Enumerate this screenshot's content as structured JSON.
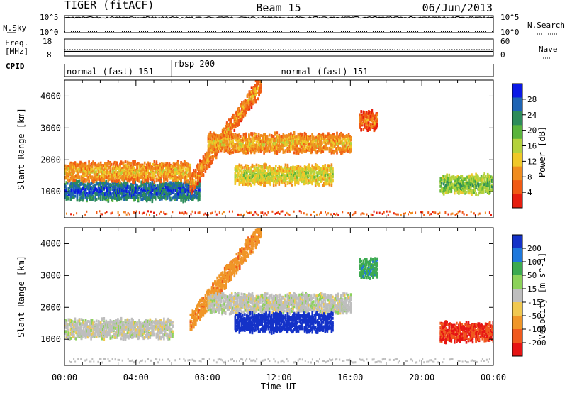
{
  "header": {
    "radar": "TIGER (fitACF)",
    "beam": "Beam 15",
    "date": "06/Jun/2013"
  },
  "status_panel": {
    "nsky_label": "N.Sky",
    "nsearch_label": "N.Search",
    "noise_ticks": [
      "10^5",
      "10^0"
    ],
    "freq_label_1": "Freq.",
    "freq_label_2": "[MHz]",
    "freq_ticks": [
      "18",
      "8"
    ],
    "nave_label": "Nave",
    "nave_ticks": [
      "60",
      "0"
    ],
    "cpid_label": "CPID",
    "cpid_segments": [
      {
        "label": "normal (fast) 151",
        "start_hour": 0,
        "end_hour": 6
      },
      {
        "label": "rbsp 200",
        "start_hour": 6,
        "end_hour": 12
      },
      {
        "label": "normal (fast) 151",
        "start_hour": 12,
        "end_hour": 24
      }
    ]
  },
  "chart_data": [
    {
      "type": "heatmap",
      "name": "power",
      "xlabel": "",
      "ylabel": "Slant Range [km]",
      "xlim": [
        0,
        24
      ],
      "ylim": [
        180,
        4500
      ],
      "yticks": [
        1000,
        2000,
        3000,
        4000
      ],
      "colorbar": {
        "label": "Power [dB]",
        "ticks": [
          4,
          8,
          12,
          16,
          20,
          24,
          28
        ],
        "range": [
          0,
          32
        ],
        "colors": [
          "#0a19e6",
          "#1e64b4",
          "#2d8c5a",
          "#5ab43c",
          "#b4d23c",
          "#f0c828",
          "#f08c1e",
          "#f05a14",
          "#e61e0f"
        ]
      },
      "features": [
        {
          "hour_start": 0.0,
          "hour_end": 7.5,
          "range_km": 1000,
          "power_db": 28
        },
        {
          "hour_start": 0.0,
          "hour_end": 7.0,
          "range_km": 1600,
          "power_db": 12
        },
        {
          "hour_start": 7.0,
          "hour_end": 11.0,
          "range_km_start": 1200,
          "range_km_end": 4400,
          "power_db": 10
        },
        {
          "hour_start": 8.0,
          "hour_end": 16.0,
          "range_km": 2500,
          "power_db": 12
        },
        {
          "hour_start": 9.5,
          "hour_end": 15.0,
          "range_km": 1500,
          "power_db": 16
        },
        {
          "hour_start": 16.5,
          "hour_end": 17.5,
          "range_km": 3200,
          "power_db": 8
        },
        {
          "hour_start": 21.0,
          "hour_end": 24.0,
          "range_km": 1200,
          "power_db": 20
        }
      ]
    },
    {
      "type": "heatmap",
      "name": "velocity",
      "xlabel": "Time UT",
      "ylabel": "Slant Range [km]",
      "xlim": [
        0,
        24
      ],
      "ylim": [
        180,
        4500
      ],
      "xticks": [
        "00:00",
        "04:00",
        "08:00",
        "12:00",
        "16:00",
        "20:00",
        "00:00"
      ],
      "yticks": [
        1000,
        2000,
        3000,
        4000
      ],
      "colorbar": {
        "label": "Velocity [m s^-1]",
        "ticks": [
          200,
          100,
          50,
          15,
          -15,
          -50,
          -100,
          -200
        ],
        "colors": [
          "#1432c8",
          "#1e78dc",
          "#3caa50",
          "#8cd25a",
          "#bebebe",
          "#f0c850",
          "#f09628",
          "#f05a1e",
          "#e61414"
        ]
      },
      "features": [
        {
          "hour_start": 0.0,
          "hour_end": 6.0,
          "range_km": 1300,
          "velocity": 0
        },
        {
          "hour_start": 7.0,
          "hour_end": 11.0,
          "range_km_start": 1500,
          "range_km_end": 4400,
          "velocity": -60
        },
        {
          "hour_start": 8.0,
          "hour_end": 16.0,
          "range_km": 2100,
          "velocity": 0
        },
        {
          "hour_start": 9.5,
          "hour_end": 15.0,
          "range_km": 1500,
          "velocity": 250
        },
        {
          "hour_start": 16.5,
          "hour_end": 17.5,
          "range_km": 3200,
          "velocity": 60
        },
        {
          "hour_start": 21.0,
          "hour_end": 24.0,
          "range_km": 1200,
          "velocity": -150
        }
      ]
    }
  ]
}
